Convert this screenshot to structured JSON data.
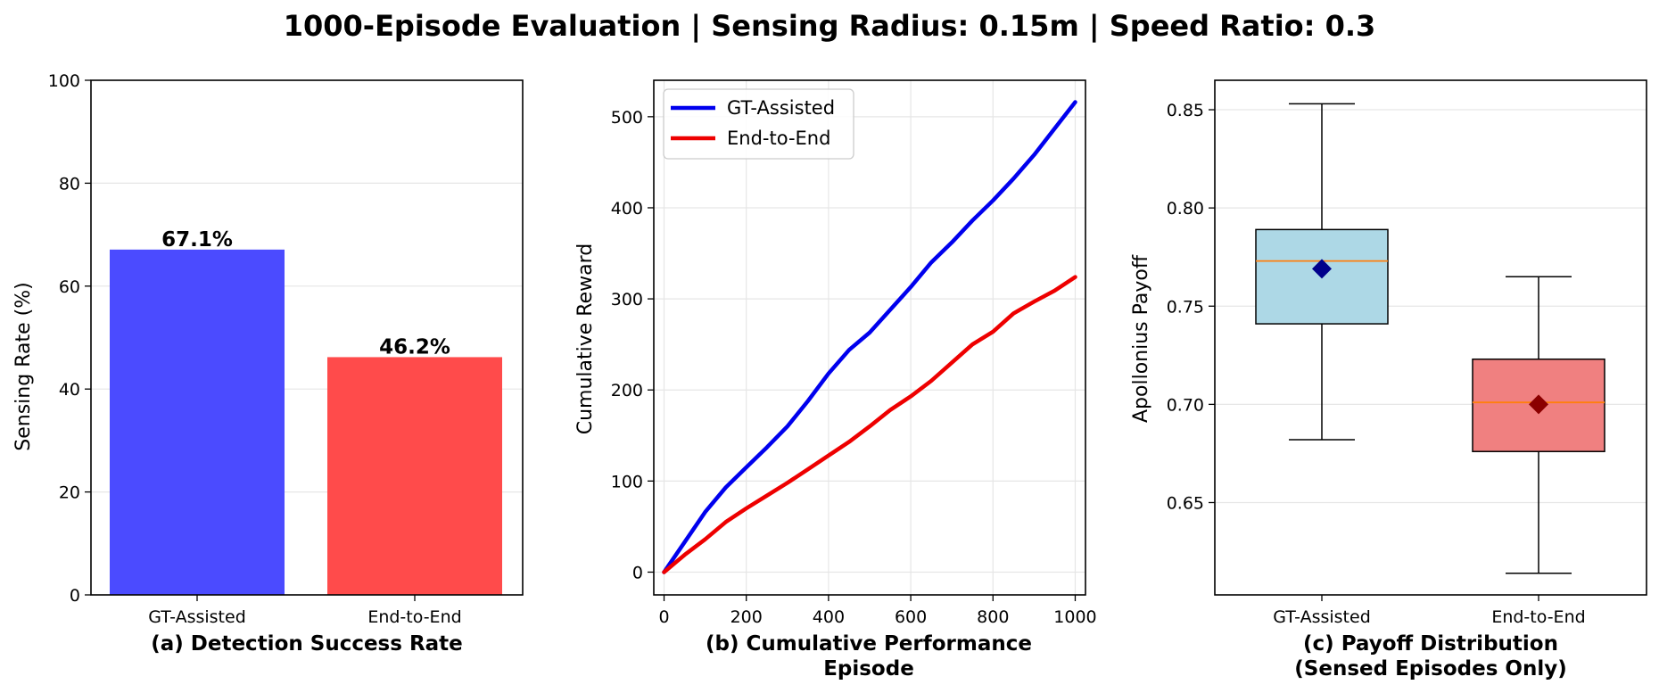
{
  "suptitle": "1000-Episode Evaluation | Sensing Radius: 0.15m | Speed Ratio: 0.3",
  "chart_data": [
    {
      "type": "bar",
      "title": "(a) Detection Success Rate",
      "xlabel": "",
      "ylabel": "Sensing Rate (%)",
      "categories": [
        "GT-Assisted",
        "End-to-End"
      ],
      "values": [
        67.1,
        46.2
      ],
      "data_labels": [
        "67.1%",
        "46.2%"
      ],
      "colors": [
        "#4b4bff",
        "#ff4b4b"
      ],
      "ylim": [
        0,
        100
      ],
      "yticks": [
        0,
        20,
        40,
        60,
        80,
        100
      ],
      "grid": "y"
    },
    {
      "type": "line",
      "title": "(b) Cumulative Performance",
      "xlabel": "Episode",
      "ylabel": "Cumulative Reward",
      "xlim": [
        -25,
        1025
      ],
      "ylim": [
        -25,
        540
      ],
      "xticks": [
        0,
        200,
        400,
        600,
        800,
        1000
      ],
      "yticks": [
        0,
        100,
        200,
        300,
        400,
        500
      ],
      "grid": "both",
      "legend": "top-left",
      "series": [
        {
          "name": "GT-Assisted",
          "color": "#0000ee",
          "x": [
            0,
            50,
            100,
            150,
            200,
            250,
            300,
            350,
            400,
            450,
            500,
            550,
            600,
            650,
            700,
            750,
            800,
            850,
            900,
            950,
            1000
          ],
          "y": [
            0,
            33,
            66,
            93,
            115,
            137,
            160,
            188,
            218,
            244,
            263,
            288,
            313,
            340,
            362,
            386,
            408,
            432,
            458,
            487,
            516
          ]
        },
        {
          "name": "End-to-End",
          "color": "#ee0000",
          "x": [
            0,
            50,
            100,
            150,
            200,
            250,
            300,
            350,
            400,
            450,
            500,
            550,
            600,
            650,
            700,
            750,
            800,
            850,
            900,
            950,
            1000
          ],
          "y": [
            0,
            19,
            36,
            55,
            70,
            84,
            98,
            113,
            128,
            143,
            160,
            178,
            193,
            210,
            230,
            250,
            264,
            284,
            297,
            309,
            324
          ]
        }
      ]
    },
    {
      "type": "box",
      "title": "(c) Payoff Distribution\n(Sensed Episodes Only)",
      "xlabel": "",
      "ylabel": "Apollonius Payoff",
      "categories": [
        "GT-Assisted",
        "End-to-End"
      ],
      "ylim": [
        0.603,
        0.865
      ],
      "yticks": [
        0.65,
        0.7,
        0.75,
        0.8,
        0.85
      ],
      "ytick_labels": [
        "0.65",
        "0.70",
        "0.75",
        "0.80",
        "0.85"
      ],
      "grid": "y",
      "boxes": [
        {
          "name": "GT-Assisted",
          "whisker_low": 0.682,
          "q1": 0.741,
          "median": 0.773,
          "q3": 0.789,
          "whisker_high": 0.853,
          "mean": 0.769,
          "box_color": "#add8e6",
          "mean_color": "#00008b"
        },
        {
          "name": "End-to-End",
          "whisker_low": 0.614,
          "q1": 0.676,
          "median": 0.701,
          "q3": 0.723,
          "whisker_high": 0.765,
          "mean": 0.7,
          "box_color": "#f08080",
          "mean_color": "#8b0000"
        }
      ]
    }
  ]
}
